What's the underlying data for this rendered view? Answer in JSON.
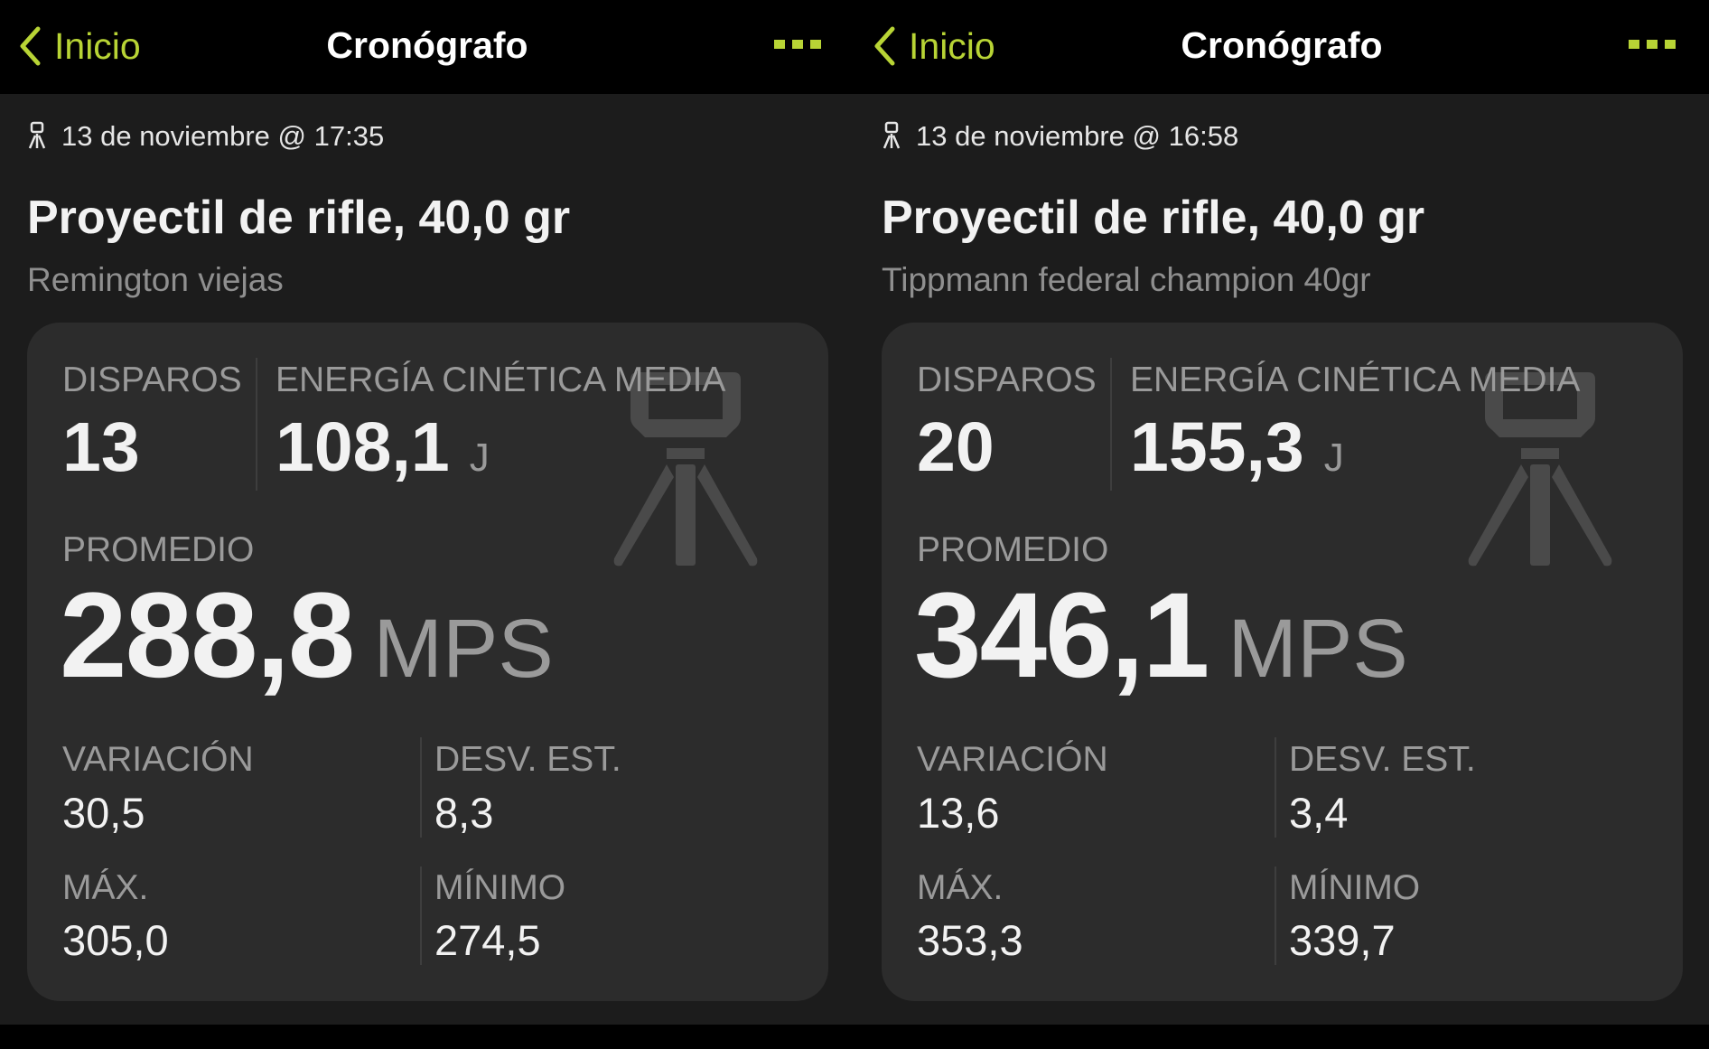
{
  "panels": [
    {
      "nav": {
        "back_label": "Inicio",
        "title": "Cronógrafo",
        "more_icon": "ellipsis-icon"
      },
      "date": "13 de noviembre @ 17:35",
      "projectile": "Proyectil de rifle, 40,0 gr",
      "ammo": "Remington viejas",
      "stats": {
        "shots_label": "DISPAROS",
        "shots": "13",
        "energy_label": "ENERGÍA CINÉTICA MEDIA",
        "energy": "108,1",
        "energy_unit": "J",
        "avg_label": "PROMEDIO",
        "avg": "288,8",
        "avg_unit": "MPS",
        "variation_label": "VARIACIÓN",
        "variation": "30,5",
        "stddev_label": "DESV. EST.",
        "stddev": "8,3",
        "max_label": "MÁX.",
        "max": "305,0",
        "min_label": "MÍNIMO",
        "min": "274,5"
      }
    },
    {
      "nav": {
        "back_label": "Inicio",
        "title": "Cronógrafo",
        "more_icon": "ellipsis-icon"
      },
      "date": "13 de noviembre @ 16:58",
      "projectile": "Proyectil de rifle, 40,0 gr",
      "ammo": "Tippmann federal champion 40gr",
      "stats": {
        "shots_label": "DISPAROS",
        "shots": "20",
        "energy_label": "ENERGÍA CINÉTICA MEDIA",
        "energy": "155,3",
        "energy_unit": "J",
        "avg_label": "PROMEDIO",
        "avg": "346,1",
        "avg_unit": "MPS",
        "variation_label": "VARIACIÓN",
        "variation": "13,6",
        "stddev_label": "DESV. EST.",
        "stddev": "3,4",
        "max_label": "MÁX.",
        "max": "353,3",
        "min_label": "MÍNIMO",
        "min": "339,7"
      }
    }
  ],
  "colors": {
    "accent": "#b8d435",
    "background": "#1c1c1c",
    "card": "#2c2c2c",
    "header": "#000000"
  }
}
